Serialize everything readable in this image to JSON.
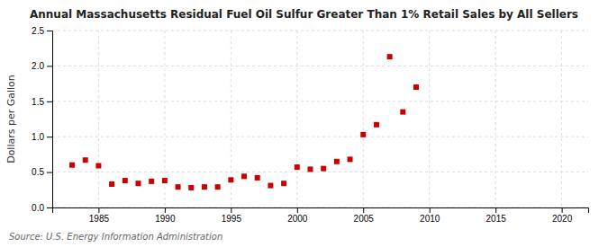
{
  "chart_data": {
    "type": "scatter",
    "title": "Annual Massachusetts Residual Fuel Oil Sulfur Greater Than 1% Retail Sales by All Sellers",
    "y_label": "Dollars per Gallon",
    "annotations": [
      "Source: U.S. Energy Information Administration"
    ],
    "x": [
      1983,
      1984,
      1985,
      1986,
      1987,
      1988,
      1989,
      1990,
      1991,
      1992,
      1993,
      1994,
      1995,
      1996,
      1997,
      1998,
      1999,
      2000,
      2001,
      2002,
      2003,
      2004,
      2005,
      2006,
      2007,
      2008,
      2009
    ],
    "values": [
      0.6,
      0.67,
      0.59,
      0.33,
      0.38,
      0.34,
      0.37,
      0.38,
      0.29,
      0.28,
      0.29,
      0.29,
      0.39,
      0.44,
      0.42,
      0.31,
      0.34,
      0.57,
      0.54,
      0.55,
      0.65,
      0.68,
      1.03,
      1.17,
      2.13,
      1.35,
      1.7
    ],
    "color": "#cc0000",
    "marker": "square",
    "xlim": [
      1981.5,
      2022
    ],
    "ylim": [
      0.0,
      2.5
    ],
    "xticks": [
      1985,
      1990,
      1995,
      2000,
      2005,
      2010,
      2015,
      2020
    ],
    "yticks": [
      {
        "value": 0,
        "label": "0.0"
      },
      0.5,
      {
        "value": 1,
        "label": "1.0"
      },
      1.5,
      {
        "value": 2,
        "label": "2.0"
      },
      2.5
    ],
    "grid": true
  }
}
